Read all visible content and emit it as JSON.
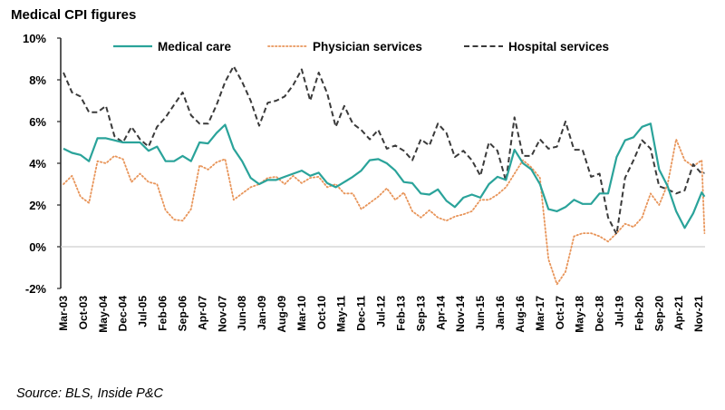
{
  "chart_data": {
    "type": "line",
    "title": "Medical CPI figures",
    "source": "Source: BLS, Inside P&C",
    "xlabel": "",
    "ylabel": "",
    "ylim": [
      -2,
      10
    ],
    "y_ticks": [
      "-2%",
      "0%",
      "2%",
      "4%",
      "6%",
      "8%",
      "10%"
    ],
    "y_tick_values": [
      -2,
      0,
      2,
      4,
      6,
      8,
      10
    ],
    "x_tick_labels": [
      "Mar-03",
      "Oct-03",
      "May-04",
      "Dec-04",
      "Jul-05",
      "Feb-06",
      "Sep-06",
      "Apr-07",
      "Nov-07",
      "Jun-08",
      "Jan-09",
      "Aug-09",
      "Mar-10",
      "Oct-10",
      "May-11",
      "Dec-11",
      "Jul-12",
      "Feb-13",
      "Sep-13",
      "Apr-14",
      "Nov-14",
      "Jun-15",
      "Jan-16",
      "Aug-16",
      "Mar-17",
      "Oct-17",
      "May-18",
      "Dec-18",
      "Jul-19",
      "Feb-20",
      "Sep-20",
      "Apr-21",
      "Nov-21"
    ],
    "grid": "zero line only",
    "legend_position": "top",
    "x": [
      "Mar-03",
      "Jun-03",
      "Sep-03",
      "Dec-03",
      "Mar-04",
      "Jun-04",
      "Sep-04",
      "Dec-04",
      "Mar-05",
      "Jun-05",
      "Sep-05",
      "Dec-05",
      "Mar-06",
      "Jun-06",
      "Sep-06",
      "Dec-06",
      "Mar-07",
      "Jun-07",
      "Sep-07",
      "Dec-07",
      "Mar-08",
      "Jun-08",
      "Sep-08",
      "Dec-08",
      "Mar-09",
      "Jun-09",
      "Sep-09",
      "Dec-09",
      "Mar-10",
      "Jun-10",
      "Sep-10",
      "Dec-10",
      "Mar-11",
      "Jun-11",
      "Sep-11",
      "Dec-11",
      "Mar-12",
      "Jun-12",
      "Sep-12",
      "Dec-12",
      "Mar-13",
      "Jun-13",
      "Sep-13",
      "Dec-13",
      "Mar-14",
      "Jun-14",
      "Sep-14",
      "Dec-14",
      "Mar-15",
      "Jun-15",
      "Sep-15",
      "Dec-15",
      "Mar-16",
      "Jun-16",
      "Sep-16",
      "Dec-16",
      "Mar-17",
      "Jun-17",
      "Sep-17",
      "Dec-17",
      "Mar-18",
      "Jun-18",
      "Sep-18",
      "Dec-18",
      "Mar-19",
      "Jun-19",
      "Sep-19",
      "Dec-19",
      "Mar-20",
      "Jun-20",
      "Sep-20",
      "Dec-20",
      "Mar-21",
      "Jun-21",
      "Sep-21",
      "Dec-21",
      "Jan-22"
    ],
    "series": [
      {
        "name": "Medical care",
        "color": "#2aa39a",
        "style": "solid",
        "values": [
          4.7,
          4.5,
          4.4,
          4.1,
          5.2,
          5.2,
          5.1,
          5.0,
          5.0,
          5.0,
          4.6,
          4.8,
          4.1,
          4.1,
          4.35,
          4.1,
          5.0,
          4.95,
          5.45,
          5.85,
          4.7,
          4.1,
          3.3,
          3.0,
          3.2,
          3.2,
          3.35,
          3.5,
          3.65,
          3.4,
          3.55,
          3.05,
          2.85,
          3.1,
          3.35,
          3.65,
          4.15,
          4.2,
          4.0,
          3.65,
          3.1,
          3.05,
          2.55,
          2.5,
          2.75,
          2.2,
          1.9,
          2.35,
          2.5,
          2.35,
          3.0,
          3.35,
          3.2,
          4.65,
          4.0,
          3.7,
          3.0,
          1.8,
          1.7,
          1.9,
          2.25,
          2.05,
          2.05,
          2.55,
          2.55,
          4.3,
          5.1,
          5.25,
          5.75,
          5.9,
          3.7,
          2.9,
          1.7,
          0.9,
          1.6,
          2.6,
          2.4
        ]
      },
      {
        "name": "Physician services",
        "color": "#e8955a",
        "style": "dotted",
        "values": [
          3.0,
          3.4,
          2.4,
          2.1,
          4.1,
          4.0,
          4.35,
          4.2,
          3.1,
          3.5,
          3.1,
          3.0,
          1.75,
          1.3,
          1.25,
          1.8,
          3.9,
          3.7,
          4.05,
          4.2,
          2.25,
          2.55,
          2.85,
          3.0,
          3.3,
          3.35,
          3.0,
          3.4,
          3.05,
          3.3,
          3.35,
          2.85,
          3.0,
          2.55,
          2.55,
          1.8,
          2.1,
          2.4,
          2.8,
          2.25,
          2.6,
          1.7,
          1.4,
          1.75,
          1.4,
          1.25,
          1.45,
          1.55,
          1.7,
          2.25,
          2.25,
          2.5,
          2.85,
          3.5,
          4.15,
          3.8,
          3.3,
          -0.6,
          -1.8,
          -1.2,
          0.5,
          0.65,
          0.65,
          0.5,
          0.25,
          0.65,
          1.1,
          0.95,
          1.4,
          2.55,
          2.0,
          3.0,
          5.15,
          4.15,
          3.85,
          4.15,
          0.65
        ]
      },
      {
        "name": "Hospital services",
        "color": "#3a3a3a",
        "style": "dashed",
        "values": [
          8.35,
          7.4,
          7.2,
          6.45,
          6.45,
          6.75,
          5.3,
          5.0,
          5.75,
          5.15,
          4.8,
          5.75,
          6.2,
          6.8,
          7.4,
          6.3,
          5.9,
          5.9,
          6.8,
          7.9,
          8.65,
          7.9,
          7.0,
          5.8,
          6.9,
          7.0,
          7.2,
          7.75,
          8.5,
          7.0,
          8.35,
          7.35,
          5.75,
          6.75,
          5.9,
          5.6,
          5.15,
          5.6,
          4.7,
          4.85,
          4.6,
          4.15,
          5.15,
          4.85,
          5.9,
          5.45,
          4.3,
          4.6,
          4.15,
          3.4,
          5.0,
          4.6,
          3.15,
          6.2,
          4.35,
          4.35,
          5.15,
          4.7,
          4.8,
          6.0,
          4.65,
          4.65,
          3.35,
          3.5,
          1.4,
          0.6,
          3.3,
          4.15,
          5.1,
          4.7,
          2.9,
          2.75,
          2.55,
          2.7,
          3.95,
          3.5,
          3.55
        ]
      }
    ]
  }
}
